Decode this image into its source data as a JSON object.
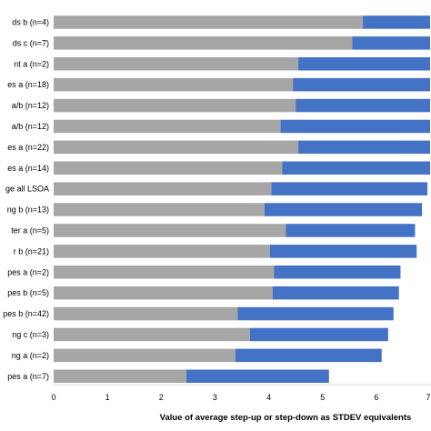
{
  "chart_data": {
    "type": "bar",
    "orientation": "horizontal",
    "stacked": true,
    "categories": [
      "ds  b (n=4)",
      "ds  c (n=7)",
      "nt  a (n=2)",
      "es  a (n=18)",
      "a/b (n=12)",
      "a/b (n=12)",
      "es  a (n=22)",
      "es  a (n=14)",
      "ge all LSOA",
      "ng  b (n=13)",
      "ter  a (n=5)",
      "r  b (n=21)",
      "pes  a (n=2)",
      "pes  b (n=5)",
      "pes  b (n=42)",
      "ng  c (n=3)",
      "ng  a (n=2)",
      "pes  a (n=7)"
    ],
    "series": [
      {
        "color": "#a6a6a6",
        "values": [
          5.75,
          5.55,
          4.55,
          4.45,
          4.5,
          4.22,
          4.55,
          4.25,
          4.05,
          3.92,
          4.32,
          4.02,
          4.1,
          4.07,
          3.42,
          3.65,
          3.38,
          2.47
        ]
      },
      {
        "color": "#4472c4",
        "values": [
          1.25,
          1.45,
          2.45,
          2.55,
          2.5,
          2.78,
          2.45,
          2.75,
          2.9,
          2.93,
          2.4,
          2.73,
          2.35,
          2.35,
          2.9,
          2.57,
          2.72,
          2.65
        ]
      }
    ],
    "xlim": [
      0,
      7
    ],
    "xticks": [
      "0",
      "1",
      "2",
      "3",
      "4",
      "5",
      "6",
      "7"
    ],
    "xlabel": "Value of average step-up or step-down as STDEV equivalents",
    "grid": false,
    "legend": "none"
  }
}
